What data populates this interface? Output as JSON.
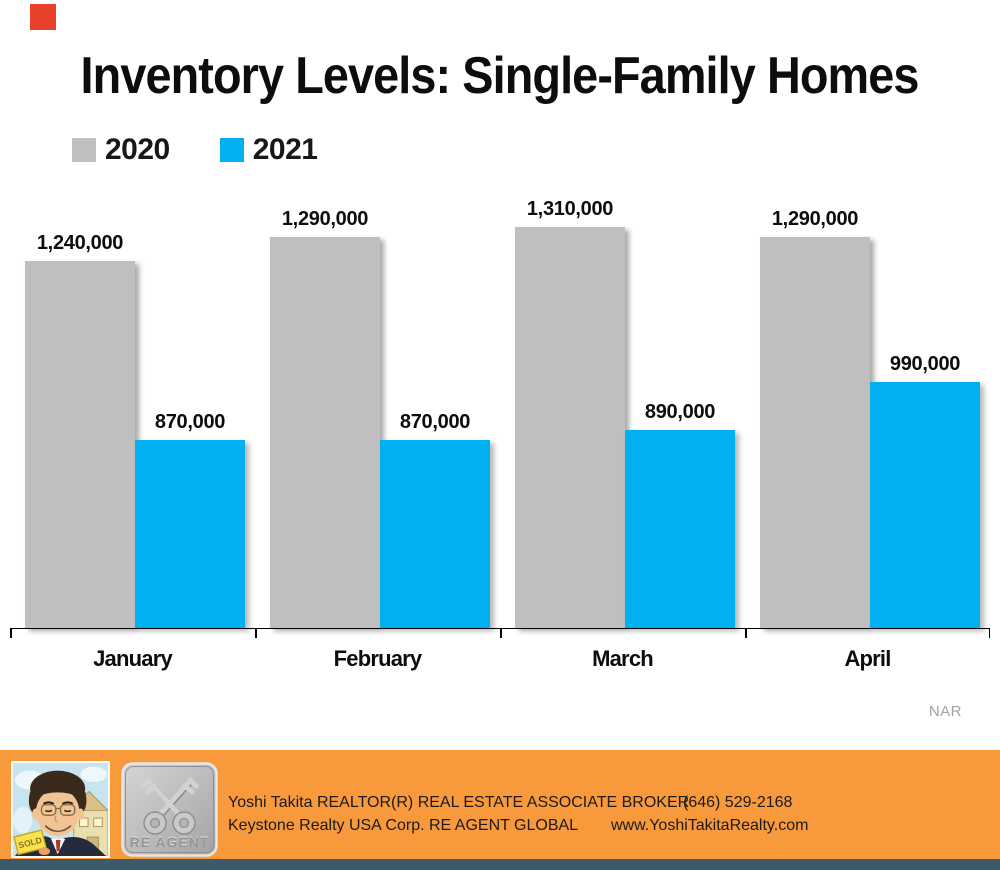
{
  "accent": {
    "top_left_square_color": "#e8402a"
  },
  "title": "Inventory Levels: Single-Family Homes",
  "legend": [
    {
      "label": "2020",
      "color": "#bfbfbf"
    },
    {
      "label": "2021",
      "color": "#00b0f0"
    }
  ],
  "chart_data": {
    "type": "bar",
    "title": "Inventory Levels: Single-Family Homes",
    "categories": [
      "January",
      "February",
      "March",
      "April"
    ],
    "series": [
      {
        "name": "2020",
        "color": "#bfbfbf",
        "values": [
          1240000,
          1290000,
          1310000,
          1290000
        ],
        "labels": [
          "1,240,000",
          "1,290,000",
          "1,310,000",
          "1,290,000"
        ]
      },
      {
        "name": "2021",
        "color": "#00b0f0",
        "values": [
          870000,
          870000,
          890000,
          990000
        ],
        "labels": [
          "870,000",
          "870,000",
          "890,000",
          "990,000"
        ]
      }
    ],
    "data_labels": true,
    "gridlines": false,
    "y_axis_visible": false,
    "axis": {
      "baseline_value": 480000,
      "top_value": 1310000
    },
    "legend_position": "top-left",
    "source": "NAR"
  },
  "footer": {
    "bg_color": "#f8993b",
    "line1_left": "Yoshi Takita REALTOR(R) REAL ESTATE ASSOCIATE BROKER",
    "line1_right": "(646) 529-2168",
    "line2_left": "Keystone Realty USA Corp.  RE AGENT GLOBAL",
    "line2_right": "www.YoshiTakitaRealty.com",
    "badge_label": "RE AGENT",
    "portrait_sign_text": "SOLD"
  }
}
